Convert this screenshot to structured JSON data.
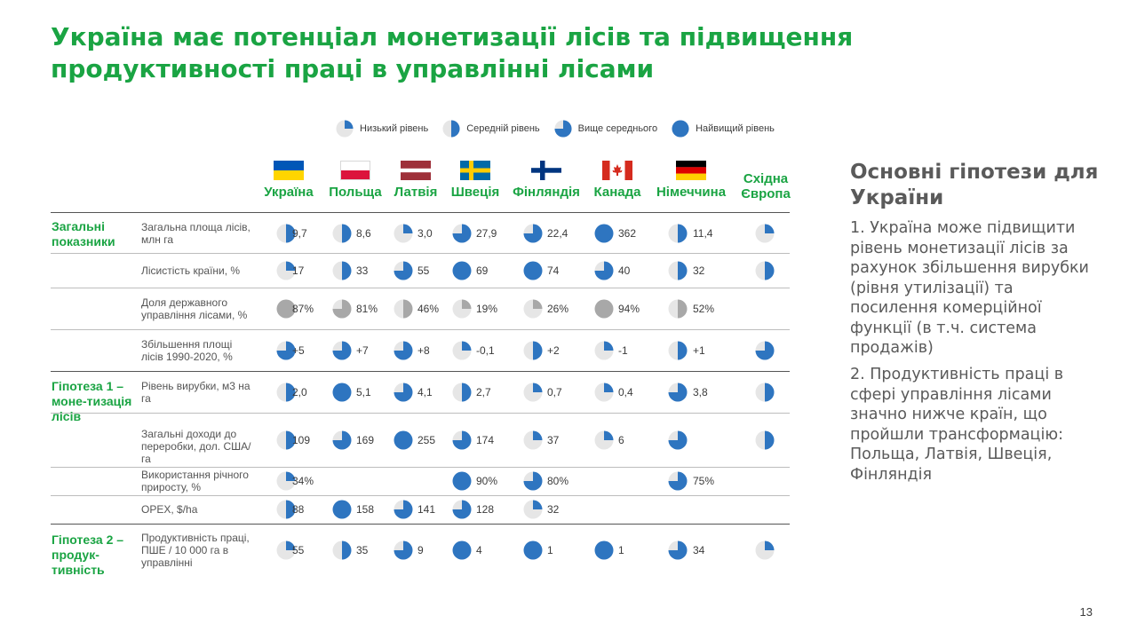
{
  "title": "Україна має потенціал монетизації лісів та підвищення продуктивності праці в управлінні лісами",
  "legend": [
    {
      "label": "Низький рівень",
      "level": 1
    },
    {
      "label": "Середній рівень",
      "level": 2
    },
    {
      "label": "Вище середнього",
      "level": 3
    },
    {
      "label": "Найвищий рівень",
      "level": 4
    }
  ],
  "countries": [
    {
      "name": "Україна",
      "flag": "ukraine-flag-icon"
    },
    {
      "name": "Польща",
      "flag": "poland-flag-icon"
    },
    {
      "name": "Латвія",
      "flag": "latvia-flag-icon"
    },
    {
      "name": "Швеція",
      "flag": "sweden-flag-icon"
    },
    {
      "name": "Фінляндія",
      "flag": "finland-flag-icon"
    },
    {
      "name": "Канада",
      "flag": "canada-flag-icon"
    },
    {
      "name": "Німеччина",
      "flag": "germany-flag-icon"
    },
    {
      "name": "Східна Європа",
      "flag": null
    }
  ],
  "sections": [
    {
      "label": "Загальні показники"
    },
    {
      "label": "Гіпотеза 1 – моне-тизація лісів"
    },
    {
      "label": "Гіпотеза 2 – продук-тивність"
    }
  ],
  "rows": [
    {
      "label": "Загальна площа лісів, млн га",
      "cells": [
        {
          "v": "9,7",
          "l": 2
        },
        {
          "v": "8,6",
          "l": 2
        },
        {
          "v": "3,0",
          "l": 1
        },
        {
          "v": "27,9",
          "l": 3
        },
        {
          "v": "22,4",
          "l": 3
        },
        {
          "v": "362",
          "l": 4
        },
        {
          "v": "11,4",
          "l": 2
        },
        {
          "v": null,
          "l": 1
        }
      ]
    },
    {
      "label": "Лісистість країни, %",
      "cells": [
        {
          "v": "17",
          "l": 1
        },
        {
          "v": "33",
          "l": 2
        },
        {
          "v": "55",
          "l": 3
        },
        {
          "v": "69",
          "l": 4
        },
        {
          "v": "74",
          "l": 4
        },
        {
          "v": "40",
          "l": 3
        },
        {
          "v": "32",
          "l": 2
        },
        {
          "v": null,
          "l": 2
        }
      ]
    },
    {
      "label": "Доля державного управління лісами, %",
      "cells": [
        {
          "v": "87%",
          "l": 4,
          "g": true
        },
        {
          "v": "81%",
          "l": 3,
          "g": true
        },
        {
          "v": "46%",
          "l": 2,
          "g": true
        },
        {
          "v": "19%",
          "l": 1,
          "g": true
        },
        {
          "v": "26%",
          "l": 1,
          "g": true
        },
        {
          "v": "94%",
          "l": 4,
          "g": true
        },
        {
          "v": "52%",
          "l": 2,
          "g": true
        },
        null
      ]
    },
    {
      "label": "Збільшення площі лісів 1990-2020, %",
      "cells": [
        {
          "v": "+5",
          "l": 3
        },
        {
          "v": "+7",
          "l": 3
        },
        {
          "v": "+8",
          "l": 3
        },
        {
          "v": "-0,1",
          "l": 1
        },
        {
          "v": "+2",
          "l": 2
        },
        {
          "v": "-1",
          "l": 1
        },
        {
          "v": "+1",
          "l": 2
        },
        {
          "v": null,
          "l": 3
        }
      ]
    },
    {
      "label": "Рівень вирубки, м3 на га",
      "cells": [
        {
          "v": "2,0",
          "l": 2
        },
        {
          "v": "5,1",
          "l": 4
        },
        {
          "v": "4,1",
          "l": 3
        },
        {
          "v": "2,7",
          "l": 2
        },
        {
          "v": "0,7",
          "l": 1
        },
        {
          "v": "0,4",
          "l": 1
        },
        {
          "v": "3,8",
          "l": 3
        },
        {
          "v": null,
          "l": 2
        }
      ]
    },
    {
      "label": "Загальні доходи до переробки, дол. США/га",
      "cells": [
        {
          "v": "109",
          "l": 2
        },
        {
          "v": "169",
          "l": 3
        },
        {
          "v": "255",
          "l": 4
        },
        {
          "v": "174",
          "l": 3
        },
        {
          "v": "37",
          "l": 1
        },
        {
          "v": "6",
          "l": 1
        },
        {
          "v": null,
          "l": 3
        },
        {
          "v": null,
          "l": 2
        }
      ]
    },
    {
      "label": "Використання річного приросту, %",
      "cells": [
        {
          "v": "34%",
          "l": 1
        },
        null,
        null,
        {
          "v": "90%",
          "l": 4
        },
        {
          "v": "80%",
          "l": 3
        },
        null,
        {
          "v": "75%",
          "l": 3
        },
        null
      ]
    },
    {
      "label": "OPEX, $/ha",
      "cells": [
        {
          "v": "88",
          "l": 2
        },
        {
          "v": "158",
          "l": 4
        },
        {
          "v": "141",
          "l": 3
        },
        {
          "v": "128",
          "l": 3
        },
        {
          "v": "32",
          "l": 1
        },
        null,
        null,
        null
      ]
    },
    {
      "label": "Продуктивність праці, ПШЕ / 10 000 га в управлінні",
      "cells": [
        {
          "v": "55",
          "l": 1
        },
        {
          "v": "35",
          "l": 2
        },
        {
          "v": "9",
          "l": 3
        },
        {
          "v": "4",
          "l": 4
        },
        {
          "v": "1",
          "l": 4
        },
        {
          "v": "1",
          "l": 4
        },
        {
          "v": "34",
          "l": 3
        },
        {
          "v": null,
          "l": 1
        }
      ]
    }
  ],
  "sidebar": {
    "title": "Основні гіпотези для України",
    "points": [
      "1. Україна може підвищити рівень монетизації лісів за рахунок збільшення вирубки (рівня утилізації) та посилення комерційної функції (в т.ч. система продажів)",
      "2. Продуктивність праці в сфері управління лісами значно нижче країн, що пройшли трансформацію: Польща, Латвія, Швеція, Фінляндія"
    ]
  },
  "page_number": "13",
  "colors": {
    "accent": "#1aa443",
    "harvey_fill": "#2e75c0",
    "harvey_bg": "#e6e6e6",
    "harvey_gray": "#a8a8a8"
  }
}
